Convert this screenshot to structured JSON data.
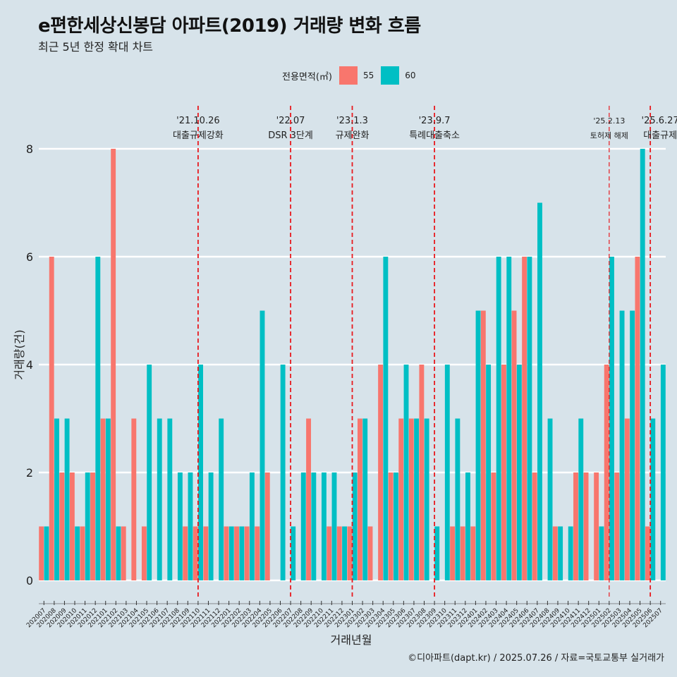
{
  "header": {
    "title": "e편한세상신봉담 아파트(2019) 거래량 변화 흐름",
    "subtitle": "최근 5년 한정 확대 차트"
  },
  "legend": {
    "title": "전용면적(㎡)",
    "items": [
      {
        "label": "55",
        "color": "#f8766d"
      },
      {
        "label": "60",
        "color": "#00bfc4"
      }
    ]
  },
  "caption": "©디아파트(dapt.kr) / 2025.07.26 / 자료=국토교통부 실거래가",
  "colors": {
    "background": "#d7e3ea",
    "grid": "#ffffff",
    "s55": "#f8766d",
    "s60": "#00bfc4",
    "event_line": "#e8191e"
  },
  "chart_data": {
    "type": "bar",
    "xlabel": "거래년월",
    "ylabel": "거래량(건)",
    "ylim": [
      0,
      8.4
    ],
    "yticks": [
      0,
      2,
      4,
      6,
      8
    ],
    "categories": [
      "202007",
      "202008",
      "202009",
      "202010",
      "202011",
      "202012",
      "202101",
      "202102",
      "202103",
      "202104",
      "202105",
      "202106",
      "202107",
      "202108",
      "202109",
      "202110",
      "202111",
      "202112",
      "202201",
      "202202",
      "202203",
      "202204",
      "202205",
      "202206",
      "202207",
      "202208",
      "202209",
      "202210",
      "202211",
      "202212",
      "202301",
      "202302",
      "202303",
      "202304",
      "202305",
      "202306",
      "202307",
      "202308",
      "202309",
      "202310",
      "202311",
      "202312",
      "202401",
      "202402",
      "202403",
      "202404",
      "202405",
      "202406",
      "202407",
      "202408",
      "202409",
      "202410",
      "202411",
      "202412",
      "202501",
      "202502",
      "202503",
      "202504",
      "202505",
      "202506",
      "202507"
    ],
    "series": [
      {
        "name": "55",
        "values": [
          1,
          6,
          2,
          2,
          1,
          2,
          3,
          8,
          1,
          3,
          1,
          0,
          0,
          0,
          1,
          1,
          1,
          0,
          1,
          1,
          1,
          1,
          2,
          0,
          0,
          0,
          3,
          0,
          1,
          1,
          1,
          3,
          1,
          4,
          2,
          3,
          3,
          4,
          0,
          0,
          1,
          1,
          1,
          5,
          2,
          4,
          5,
          6,
          2,
          0,
          1,
          0,
          2,
          2,
          2,
          4,
          2,
          3,
          6,
          1,
          0
        ]
      },
      {
        "name": "60",
        "values": [
          1,
          3,
          3,
          1,
          2,
          6,
          3,
          1,
          0,
          0,
          4,
          3,
          3,
          2,
          2,
          4,
          2,
          3,
          1,
          1,
          2,
          5,
          0,
          4,
          1,
          2,
          2,
          2,
          2,
          1,
          2,
          3,
          0,
          6,
          2,
          4,
          3,
          3,
          1,
          4,
          3,
          2,
          5,
          4,
          6,
          6,
          4,
          6,
          7,
          3,
          1,
          1,
          3,
          0,
          1,
          6,
          5,
          5,
          8,
          3,
          4
        ]
      }
    ],
    "events": [
      {
        "date": "'21.10.26",
        "label": "대출규제강화",
        "month": "202110"
      },
      {
        "date": "'22.07",
        "label": "DSR 3단계",
        "month": "202207"
      },
      {
        "date": "'23.1.3",
        "label": "규제완화",
        "month": "202301"
      },
      {
        "date": "'23.9.7",
        "label": "특례대출축소",
        "month": "202309"
      },
      {
        "date": "'25.2.13",
        "label": "토허제 해제",
        "month": "202502"
      },
      {
        "date": "'25.6.27",
        "label": "대출규제",
        "month": "202506"
      }
    ]
  }
}
